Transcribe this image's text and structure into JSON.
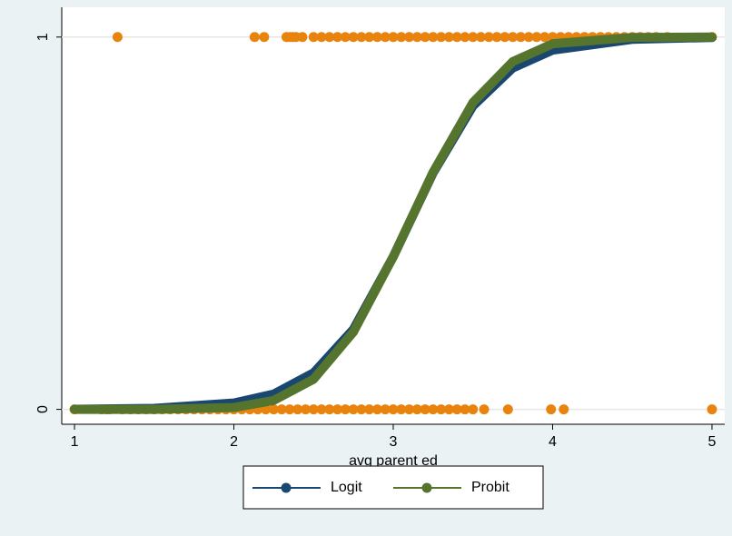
{
  "chart_data": {
    "type": "scatter",
    "x_label": "avg parent ed",
    "xlim": [
      0.92,
      5.08
    ],
    "xticks": [
      1,
      2,
      3,
      4,
      5
    ],
    "ylim": [
      -0.04,
      1.08
    ],
    "yticks": [
      0,
      1
    ],
    "grid": true,
    "legend_position": "bottom",
    "series": [
      {
        "type": "scatter",
        "color": "#e8840e",
        "x": [
          1.27,
          2.13,
          2.19,
          2.33,
          2.35,
          2.37,
          2.39,
          2.43,
          2.5,
          2.55,
          2.6,
          2.65,
          2.7,
          2.75,
          2.8,
          2.85,
          2.9,
          2.95,
          3.0,
          3.05,
          3.1,
          3.15,
          3.2,
          3.25,
          3.3,
          3.35,
          3.4,
          3.45,
          3.5,
          3.55,
          3.6,
          3.65,
          3.7,
          3.75,
          3.8,
          3.85,
          3.9,
          3.95,
          4.0,
          4.05,
          4.1,
          4.15,
          4.2,
          4.25,
          4.3,
          4.35,
          4.4,
          4.45,
          4.5,
          4.55,
          4.6,
          4.65,
          4.72,
          5.0,
          1.0,
          1.17,
          1.2,
          1.22,
          1.3,
          1.35,
          1.4,
          1.45,
          1.5,
          1.55,
          1.6,
          1.65,
          1.7,
          1.75,
          1.8,
          1.85,
          1.9,
          1.95,
          2.0,
          2.05,
          2.1,
          2.15,
          2.2,
          2.25,
          2.3,
          2.35,
          2.4,
          2.45,
          2.5,
          2.55,
          2.6,
          2.65,
          2.7,
          2.75,
          2.8,
          2.85,
          2.9,
          2.95,
          3.0,
          3.05,
          3.1,
          3.15,
          3.2,
          3.25,
          3.3,
          3.35,
          3.4,
          3.45,
          3.5,
          3.57,
          3.72,
          3.99,
          4.07,
          5.0
        ],
        "y": [
          1,
          1,
          1,
          1,
          1,
          1,
          1,
          1,
          1,
          1,
          1,
          1,
          1,
          1,
          1,
          1,
          1,
          1,
          1,
          1,
          1,
          1,
          1,
          1,
          1,
          1,
          1,
          1,
          1,
          1,
          1,
          1,
          1,
          1,
          1,
          1,
          1,
          1,
          1,
          1,
          1,
          1,
          1,
          1,
          1,
          1,
          1,
          1,
          1,
          1,
          1,
          1,
          1,
          1,
          0,
          0,
          0,
          0,
          0,
          0,
          0,
          0,
          0,
          0,
          0,
          0,
          0,
          0,
          0,
          0,
          0,
          0,
          0,
          0,
          0,
          0,
          0,
          0,
          0,
          0,
          0,
          0,
          0,
          0,
          0,
          0,
          0,
          0,
          0,
          0,
          0,
          0,
          0,
          0,
          0,
          0,
          0,
          0,
          0,
          0,
          0,
          0,
          0,
          0,
          0,
          0,
          0,
          0
        ]
      },
      {
        "type": "line",
        "name": "Logit",
        "color": "#1a476f",
        "x": [
          1,
          1.5,
          2,
          2.25,
          2.5,
          2.75,
          3,
          3.25,
          3.5,
          3.75,
          4,
          4.5,
          5
        ],
        "y": [
          0.0004,
          0.0027,
          0.017,
          0.041,
          0.098,
          0.215,
          0.41,
          0.635,
          0.815,
          0.917,
          0.965,
          0.994,
          0.999
        ]
      },
      {
        "type": "line",
        "name": "Probit",
        "color": "#55752f",
        "x": [
          1,
          1.5,
          2,
          2.25,
          2.5,
          2.75,
          3,
          3.25,
          3.5,
          3.75,
          4,
          4.5,
          5
        ],
        "y": [
          0,
          0.0001,
          0.005,
          0.024,
          0.081,
          0.208,
          0.41,
          0.637,
          0.824,
          0.934,
          0.982,
          0.999,
          1.0
        ]
      }
    ]
  }
}
